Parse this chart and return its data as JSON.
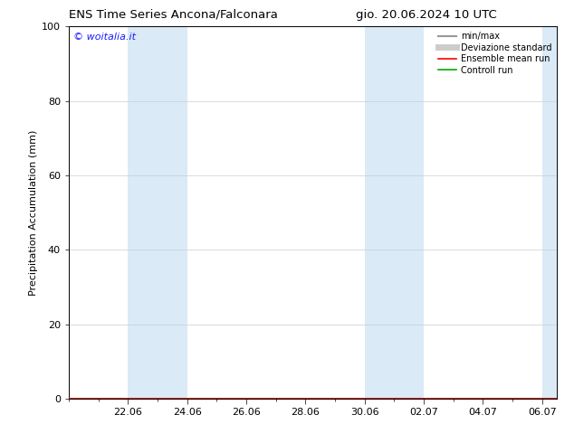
{
  "title_left": "ENS Time Series Ancona/Falconara",
  "title_right": "gio. 20.06.2024 10 UTC",
  "ylabel": "Precipitation Accumulation (mm)",
  "ylim": [
    0,
    100
  ],
  "yticks": [
    0,
    20,
    40,
    60,
    80,
    100
  ],
  "xtick_labels": [
    "22.06",
    "24.06",
    "26.06",
    "28.06",
    "30.06",
    "02.07",
    "04.07",
    "06.07"
  ],
  "xtick_positions": [
    2,
    4,
    6,
    8,
    10,
    12,
    14,
    16
  ],
  "x_min": 0,
  "x_max": 16.5,
  "shaded_bands": [
    {
      "x_start": 2,
      "x_end": 4
    },
    {
      "x_start": 10,
      "x_end": 12
    },
    {
      "x_start": 16,
      "x_end": 16.5
    }
  ],
  "band_color": "#daeaf7",
  "watermark_text": "© woitalia.it",
  "watermark_color": "#1a1aff",
  "legend_entries": [
    {
      "label": "min/max",
      "color": "#999999",
      "lw": 1.5
    },
    {
      "label": "Deviazione standard",
      "color": "#cccccc",
      "lw": 5
    },
    {
      "label": "Ensemble mean run",
      "color": "#ff0000",
      "lw": 1.2
    },
    {
      "label": "Controll run",
      "color": "#00aa00",
      "lw": 1.2
    }
  ],
  "bg_color": "#ffffff",
  "grid_color": "#cccccc",
  "title_fontsize": 9.5,
  "tick_fontsize": 8,
  "ylabel_fontsize": 8,
  "legend_fontsize": 7,
  "watermark_fontsize": 8
}
